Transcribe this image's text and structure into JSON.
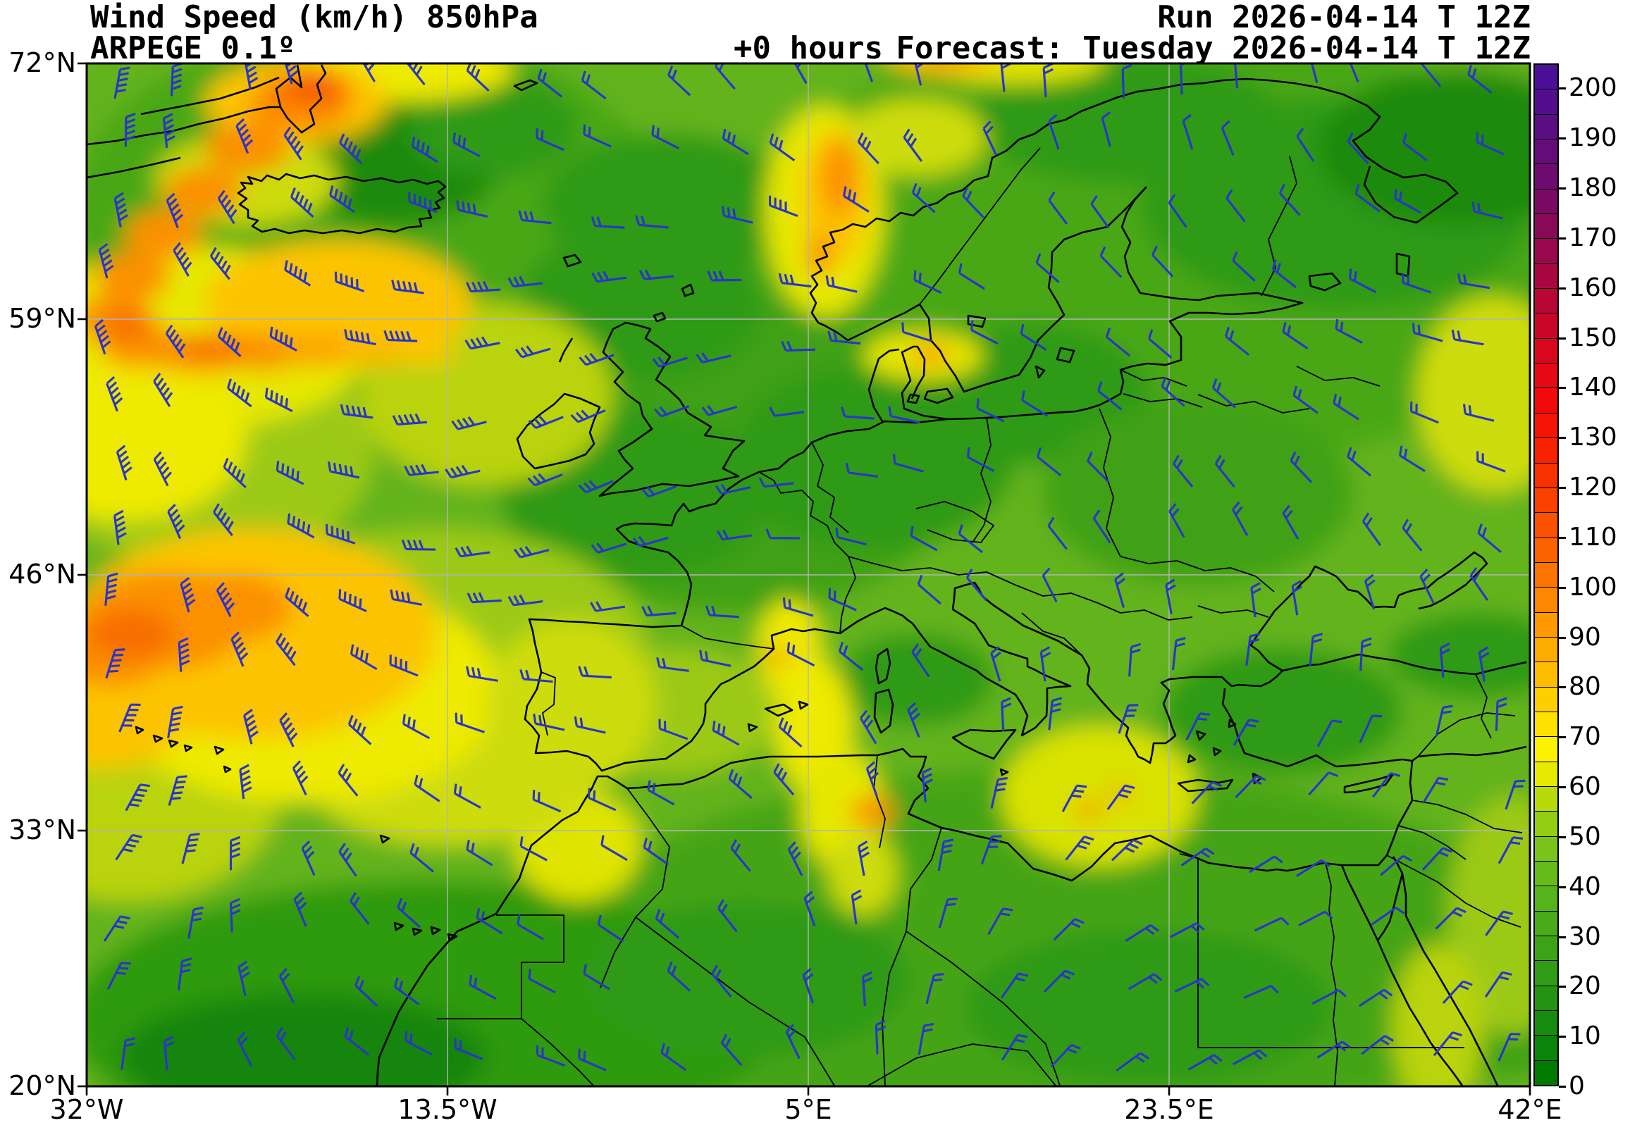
{
  "header": {
    "title": "Wind Speed (km/h) 850hPa",
    "model": "ARPEGE 0.1º",
    "lead_time": "+0 hours",
    "run": "Run 2026-04-14 T 12Z",
    "forecast": "Forecast: Tuesday 2026-04-14 T 12Z"
  },
  "chart_data": {
    "type": "heatmap",
    "subtype": "filled-contour weather map with wind barbs",
    "variable": "wind speed",
    "units": "km/h",
    "level": "850hPa",
    "model": "ARPEGE 0.1º",
    "run": "2026-04-14 T 12Z",
    "forecast_valid": "Tuesday 2026-04-14 T 12Z",
    "lead_hours": 0,
    "x_axis": {
      "kind": "longitude",
      "ticks": [
        "32°W",
        "13.5°W",
        "5°E",
        "23.5°E",
        "42°E"
      ],
      "range_deg": [
        -32,
        42
      ]
    },
    "y_axis": {
      "kind": "latitude",
      "ticks": [
        "72°N",
        "59°N",
        "46°N",
        "33°N",
        "20°N"
      ],
      "range_deg": [
        20,
        72
      ]
    },
    "gridlines": {
      "lat": [
        "59°N",
        "46°N",
        "33°N"
      ],
      "lon": [
        "13.5°W",
        "5°E",
        "23.5°E"
      ],
      "color": "#b4b4b4"
    },
    "colorbar": {
      "min": 0,
      "max": 205,
      "segment_step": 5,
      "tick_step": 10,
      "tick_labels": [
        "0",
        "10",
        "20",
        "30",
        "40",
        "50",
        "60",
        "70",
        "80",
        "90",
        "100",
        "110",
        "120",
        "130",
        "140",
        "150",
        "160",
        "170",
        "180",
        "190",
        "200"
      ],
      "colors_bottom_to_top": [
        "#017a01",
        "#0c830a",
        "#178b0f",
        "#239313",
        "#2f9b16",
        "#3ca318",
        "#49ab1a",
        "#57b31b",
        "#66bb1b",
        "#79c31a",
        "#93ce13",
        "#b8da0a",
        "#e6ea00",
        "#fdf200",
        "#fee100",
        "#fecf00",
        "#febd00",
        "#feab00",
        "#fe9900",
        "#fd8700",
        "#fc7500",
        "#fb6300",
        "#fa5200",
        "#f94100",
        "#f83100",
        "#f72200",
        "#f61505",
        "#f20a0b",
        "#e60814",
        "#d8071e",
        "#c90629",
        "#b90635",
        "#a90741",
        "#99084d",
        "#890959",
        "#7a0a64",
        "#6e0b6f",
        "#640c79",
        "#5b0d83",
        "#530e8d",
        "#4c0f97"
      ]
    },
    "wind_barbs": {
      "symbol": "wind-barb",
      "color": "#2a35c8",
      "coverage": "regular grid over the whole map"
    },
    "land_outline_color": "#000000",
    "map_border_color": "#000000",
    "background_speed_kmh": "mostly 20–60 over land and sea",
    "features": [
      {
        "region": "South-east Greenland coast",
        "approx_max_kmh": 125
      },
      {
        "region": "North Atlantic jet arc south of Iceland (curving to ~46°N)",
        "approx_max_kmh": 110
      },
      {
        "region": "Azores / subtropical Atlantic patch",
        "approx_max_kmh": 100
      },
      {
        "region": "Norwegian coast streak",
        "approx_max_kmh": 95
      },
      {
        "region": "Kattegat / southern Scandinavia",
        "approx_max_kmh": 80
      },
      {
        "region": "Gulf of Lion – western Mediterranean (mistral)",
        "approx_max_kmh": 85
      },
      {
        "region": "Aegean Sea",
        "approx_max_kmh": 85
      },
      {
        "region": "NW Russia / upper Volga yellow patch",
        "approx_max_kmh": 65
      },
      {
        "region": "Red Sea channel",
        "approx_max_kmh": 55
      },
      {
        "region": "Continental Europe interior",
        "approx_max_kmh": 35
      }
    ]
  }
}
